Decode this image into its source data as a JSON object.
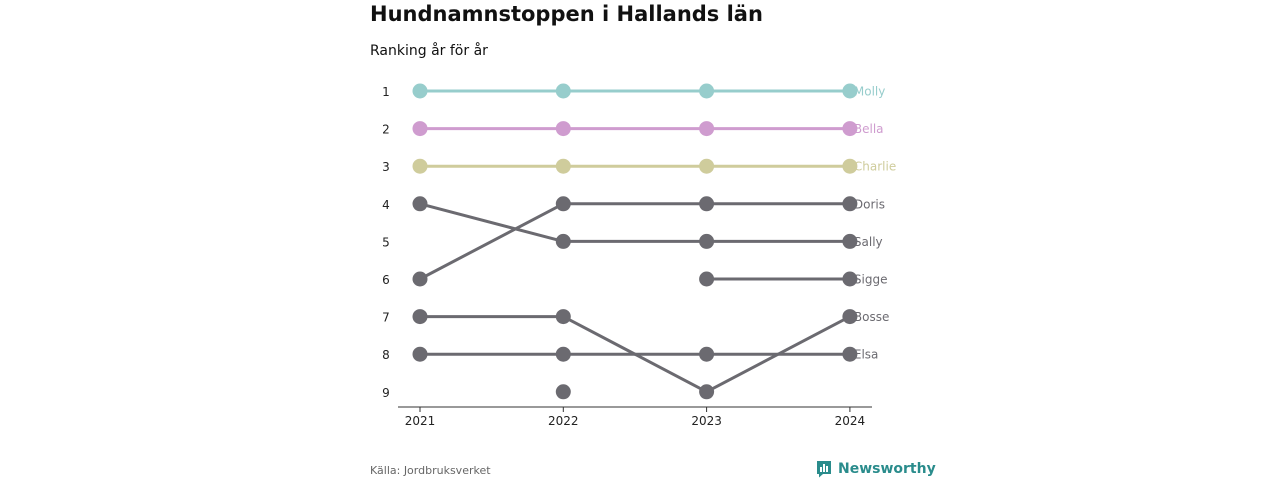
{
  "title": "Hundnamnstoppen i Hallands län",
  "subtitle": "Ranking år för år",
  "source": "Källa: Jordbruksverket",
  "brand": "Newsworthy",
  "brand_icon": "bar-chart-logo-icon",
  "colors": {
    "Molly": "#97cdcc",
    "Bella": "#cf9ccf",
    "Charlie": "#cfcc9c",
    "default": "#6b6a70",
    "axis": "#333333",
    "brand": "#2a8c8c"
  },
  "chart_data": {
    "type": "line",
    "title": "Hundnamnstoppen i Hallands län",
    "subtitle": "Ranking år för år",
    "x": [
      "2021",
      "2022",
      "2023",
      "2024"
    ],
    "y_ticks": [
      "1",
      "2",
      "3",
      "4",
      "5",
      "6",
      "7",
      "8",
      "9"
    ],
    "ylim": [
      1,
      9
    ],
    "y_inverted": true,
    "grid": false,
    "series": [
      {
        "name": "Molly",
        "values": [
          1,
          1,
          1,
          1
        ]
      },
      {
        "name": "Bella",
        "values": [
          2,
          2,
          2,
          2
        ]
      },
      {
        "name": "Charlie",
        "values": [
          3,
          3,
          3,
          3
        ]
      },
      {
        "name": "Doris",
        "values": [
          6,
          4,
          4,
          4
        ]
      },
      {
        "name": "Sally",
        "values": [
          4,
          5,
          5,
          5
        ]
      },
      {
        "name": "Sigge",
        "values": [
          null,
          null,
          6,
          6
        ]
      },
      {
        "name": "Bosse",
        "values": [
          7,
          7,
          9,
          7
        ]
      },
      {
        "name": "Elsa",
        "values": [
          8,
          8,
          8,
          8
        ]
      },
      {
        "name": "",
        "values": [
          null,
          9,
          null,
          null
        ]
      }
    ]
  }
}
